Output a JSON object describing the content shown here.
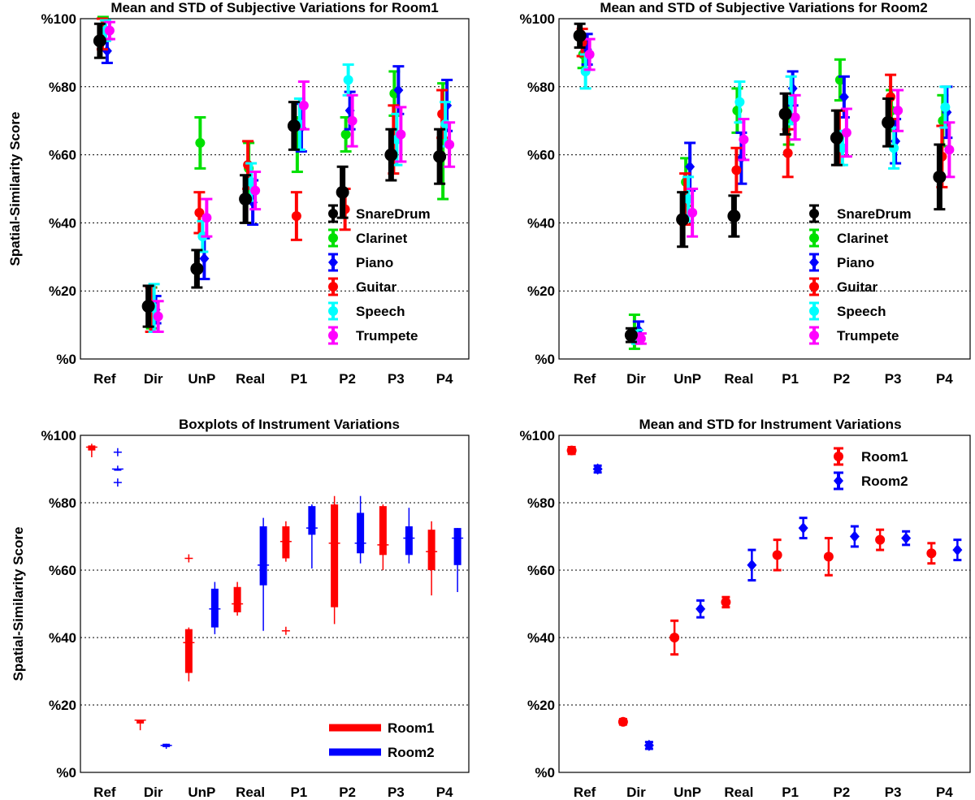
{
  "chart_data": [
    {
      "id": "room1",
      "type": "errorbar",
      "title": "Mean and STD of Subjective Variations for Room1",
      "ylabel": "Spatial-Similarity Score",
      "xlabel": "",
      "categories": [
        "Ref",
        "Dir",
        "UnP",
        "Real",
        "P1",
        "P2",
        "P3",
        "P4"
      ],
      "ylim": [
        0,
        100
      ],
      "yticks": [
        "%0",
        "%20",
        "%40",
        "%60",
        "%80",
        "%100"
      ],
      "grid": "dotted horizontal",
      "legend_position": "center-right",
      "series": [
        {
          "name": "SnareDrum",
          "color": "#000000",
          "marker": "circle",
          "mean": [
            93.5,
            15.5,
            26.5,
            47,
            68.5,
            49,
            60,
            59.5
          ],
          "std": [
            5,
            6,
            5.5,
            7,
            7,
            7.5,
            7.5,
            8
          ]
        },
        {
          "name": "Clarinet",
          "color": "#00e000",
          "marker": "circle",
          "mean": [
            97,
            15,
            63.5,
            56,
            63,
            66,
            78,
            64
          ],
          "std": [
            3.5,
            6,
            7.5,
            7.5,
            8,
            5,
            6.5,
            17
          ]
        },
        {
          "name": "Piano",
          "color": "#0000ff",
          "marker": "diamond",
          "mean": [
            90.5,
            14.5,
            29.5,
            46,
            68,
            73,
            79,
            74.5
          ],
          "std": [
            3.5,
            4,
            6,
            6.5,
            7,
            5.5,
            7,
            7.5
          ]
        },
        {
          "name": "Guitar",
          "color": "#ff0000",
          "marker": "circle",
          "mean": [
            95.5,
            14.5,
            43,
            57,
            42,
            44,
            64.5,
            72
          ],
          "std": [
            4.5,
            6.5,
            6,
            7,
            7,
            6,
            10,
            7
          ]
        },
        {
          "name": "Speech",
          "color": "#00ffff",
          "marker": "circle",
          "mean": [
            96.5,
            15,
            36,
            52,
            69,
            82,
            64.5,
            69
          ],
          "std": [
            3,
            7,
            4.5,
            5.5,
            7.5,
            4.5,
            7.5,
            6.5
          ]
        },
        {
          "name": "Trumpete",
          "color": "#ff00ff",
          "marker": "circle",
          "mean": [
            96.5,
            12.5,
            41.5,
            49.5,
            74.5,
            70,
            66,
            63
          ],
          "std": [
            2.5,
            4.5,
            5.5,
            5.5,
            7,
            7.5,
            8,
            6.5
          ]
        }
      ]
    },
    {
      "id": "room2",
      "type": "errorbar",
      "title": "Mean and STD of Subjective Variations for Room2",
      "ylabel": "",
      "xlabel": "",
      "categories": [
        "Ref",
        "Dir",
        "UnP",
        "Real",
        "P1",
        "P2",
        "P3",
        "P4"
      ],
      "ylim": [
        0,
        100
      ],
      "yticks": [
        "%0",
        "%20",
        "%40",
        "%60",
        "%80",
        "%100"
      ],
      "grid": "dotted horizontal",
      "legend_position": "center-right",
      "series": [
        {
          "name": "SnareDrum",
          "color": "#000000",
          "marker": "circle",
          "mean": [
            95,
            7,
            41,
            42,
            72,
            65,
            69.5,
            53.5
          ],
          "std": [
            3.5,
            2,
            8,
            6,
            6,
            8,
            7,
            9.5
          ]
        },
        {
          "name": "Clarinet",
          "color": "#00e000",
          "marker": "circle",
          "mean": [
            89.5,
            8,
            52,
            73,
            70,
            82,
            73,
            70
          ],
          "std": [
            4,
            5,
            7,
            6.5,
            7,
            6,
            6,
            7.5
          ]
        },
        {
          "name": "Piano",
          "color": "#0000ff",
          "marker": "diamond",
          "mean": [
            91,
            8.5,
            56.5,
            59,
            79.5,
            77,
            64,
            72.5
          ],
          "std": [
            4.5,
            2.5,
            7,
            7.5,
            5,
            6,
            6.5,
            7.5
          ]
        },
        {
          "name": "Guitar",
          "color": "#ff0000",
          "marker": "circle",
          "mean": [
            93,
            7,
            47,
            55.5,
            60.5,
            65,
            77,
            59.5
          ],
          "std": [
            4,
            1.5,
            7.5,
            6.5,
            7,
            8,
            6.5,
            9
          ]
        },
        {
          "name": "Speech",
          "color": "#00ffff",
          "marker": "circle",
          "mean": [
            84.5,
            6.5,
            47,
            75.5,
            76,
            62,
            62,
            74
          ],
          "std": [
            5,
            2,
            6.5,
            6,
            7,
            5,
            6,
            6
          ]
        },
        {
          "name": "Trumpete",
          "color": "#ff00ff",
          "marker": "circle",
          "mean": [
            89.5,
            6,
            43,
            64.5,
            71,
            66.5,
            73,
            61.5
          ],
          "std": [
            4.5,
            1.5,
            7,
            6,
            6.5,
            7,
            6,
            8
          ]
        }
      ]
    },
    {
      "id": "boxplots",
      "type": "boxplot",
      "title": "Boxplots of Instrument Variations",
      "ylabel": "Spatial-Similarity Score",
      "xlabel": "",
      "categories": [
        "Ref",
        "Dir",
        "UnP",
        "Real",
        "P1",
        "P2",
        "P3",
        "P4"
      ],
      "ylim": [
        0,
        100
      ],
      "yticks": [
        "%0",
        "%20",
        "%40",
        "%60",
        "%80",
        "%100"
      ],
      "grid": "dotted horizontal",
      "legend_position": "bottom-right",
      "series": [
        {
          "name": "Room1",
          "color": "#ff0000",
          "boxes": [
            {
              "whisker_low": 93.5,
              "q1": 95.5,
              "median": 96.5,
              "q3": 97,
              "whisker_high": 97.5,
              "outliers": []
            },
            {
              "whisker_low": 12.5,
              "q1": 14.5,
              "median": 15.5,
              "q3": 15.5,
              "whisker_high": 15.5,
              "outliers": []
            },
            {
              "whisker_low": 27,
              "q1": 29.5,
              "median": 38.5,
              "q3": 42.5,
              "whisker_high": 43,
              "outliers": [
                63.5
              ]
            },
            {
              "whisker_low": 46.5,
              "q1": 47.5,
              "median": 50,
              "q3": 55,
              "whisker_high": 56.5,
              "outliers": []
            },
            {
              "whisker_low": 62.5,
              "q1": 63.5,
              "median": 68.5,
              "q3": 73,
              "whisker_high": 74.5,
              "outliers": [
                42
              ]
            },
            {
              "whisker_low": 44,
              "q1": 49,
              "median": 68,
              "q3": 79.5,
              "whisker_high": 82,
              "outliers": []
            },
            {
              "whisker_low": 60,
              "q1": 64.5,
              "median": 67.5,
              "q3": 79,
              "whisker_high": 79.5,
              "outliers": []
            },
            {
              "whisker_low": 52.5,
              "q1": 60,
              "median": 65.5,
              "q3": 72,
              "whisker_high": 74.5,
              "outliers": []
            }
          ]
        },
        {
          "name": "Room2",
          "color": "#0000ff",
          "boxes": [
            {
              "whisker_low": 89.5,
              "q1": 89.5,
              "median": 90,
              "q3": 90,
              "whisker_high": 91,
              "outliers": [
                95,
                86
              ]
            },
            {
              "whisker_low": 7,
              "q1": 7.5,
              "median": 8,
              "q3": 8.5,
              "whisker_high": 8.5,
              "outliers": []
            },
            {
              "whisker_low": 41,
              "q1": 43,
              "median": 48.5,
              "q3": 54.5,
              "whisker_high": 56.5,
              "outliers": []
            },
            {
              "whisker_low": 42,
              "q1": 55.5,
              "median": 61.5,
              "q3": 73,
              "whisker_high": 75.5,
              "outliers": []
            },
            {
              "whisker_low": 60.5,
              "q1": 70.5,
              "median": 72.5,
              "q3": 79,
              "whisker_high": 79.5,
              "outliers": []
            },
            {
              "whisker_low": 62,
              "q1": 65,
              "median": 68,
              "q3": 77,
              "whisker_high": 82,
              "outliers": []
            },
            {
              "whisker_low": 62,
              "q1": 64.5,
              "median": 69.5,
              "q3": 73,
              "whisker_high": 78.5,
              "outliers": []
            },
            {
              "whisker_low": 53.5,
              "q1": 61.5,
              "median": 69.5,
              "q3": 72.5,
              "whisker_high": 72.5,
              "outliers": []
            }
          ]
        }
      ]
    },
    {
      "id": "instrument-mean",
      "type": "errorbar",
      "title": "Mean and STD for Instrument Variations",
      "ylabel": "",
      "xlabel": "",
      "categories": [
        "Ref",
        "Dir",
        "UnP",
        "Real",
        "P1",
        "P2",
        "P3",
        "P4"
      ],
      "ylim": [
        0,
        100
      ],
      "yticks": [
        "%0",
        "%20",
        "%40",
        "%60",
        "%80",
        "%100"
      ],
      "grid": "dotted horizontal",
      "legend_position": "top-right",
      "series": [
        {
          "name": "Room1",
          "color": "#ff0000",
          "marker": "circle",
          "mean": [
            95.5,
            15,
            40,
            50.5,
            64.5,
            64,
            69,
            65
          ],
          "std": [
            1,
            0.8,
            5,
            1.5,
            4.5,
            5.5,
            3,
            3
          ]
        },
        {
          "name": "Room2",
          "color": "#0000ff",
          "marker": "diamond",
          "mean": [
            90,
            8,
            48.5,
            61.5,
            72.5,
            70,
            69.5,
            66
          ],
          "std": [
            1,
            1,
            2.5,
            4.5,
            3,
            3,
            2,
            3
          ]
        }
      ]
    }
  ]
}
